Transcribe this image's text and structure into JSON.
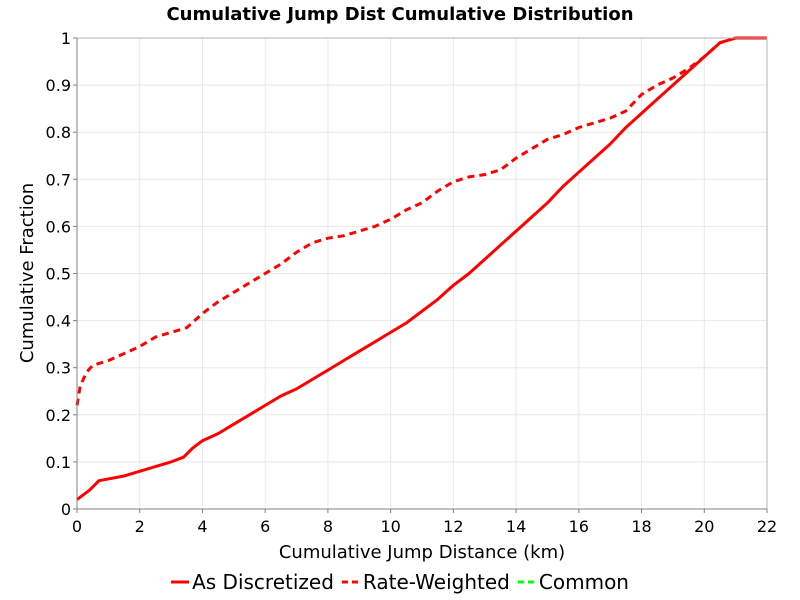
{
  "chart_data": {
    "type": "line",
    "title": "Cumulative Jump Dist Cumulative Distribution",
    "xlabel": "Cumulative Jump Distance (km)",
    "ylabel": "Cumulative Fraction",
    "xlim": [
      0,
      22
    ],
    "ylim": [
      0,
      1
    ],
    "x_ticks": [
      "0",
      "2",
      "4",
      "6",
      "8",
      "10",
      "12",
      "14",
      "16",
      "18",
      "20",
      "22"
    ],
    "y_ticks": [
      "0",
      "0.1",
      "0.2",
      "0.3",
      "0.4",
      "0.5",
      "0.6",
      "0.7",
      "0.8",
      "0.9",
      "1"
    ],
    "grid": true,
    "legend_position": "bottom",
    "series": [
      {
        "name": "As Discretized",
        "color": "#ff0000",
        "style": "solid",
        "x": [
          0,
          0.4,
          0.7,
          1.5,
          2,
          2.5,
          3,
          3.4,
          3.7,
          4,
          4.5,
          5,
          5.5,
          6,
          6.5,
          7,
          7.5,
          8,
          8.5,
          9,
          9.5,
          10,
          10.5,
          11,
          11.5,
          12,
          12.5,
          13,
          13.5,
          14,
          14.5,
          15,
          15.5,
          16,
          16.5,
          17,
          17.5,
          18,
          18.5,
          19,
          19.5,
          20,
          20.5,
          21,
          22
        ],
        "y": [
          0.02,
          0.04,
          0.06,
          0.07,
          0.08,
          0.09,
          0.1,
          0.11,
          0.13,
          0.145,
          0.16,
          0.18,
          0.2,
          0.22,
          0.24,
          0.255,
          0.275,
          0.295,
          0.315,
          0.335,
          0.355,
          0.375,
          0.395,
          0.42,
          0.445,
          0.475,
          0.5,
          0.53,
          0.56,
          0.59,
          0.62,
          0.65,
          0.685,
          0.715,
          0.745,
          0.775,
          0.81,
          0.84,
          0.87,
          0.9,
          0.93,
          0.96,
          0.99,
          1,
          1
        ]
      },
      {
        "name": "Rate-Weighted",
        "color": "#ff0000",
        "style": "dashed",
        "x": [
          0,
          0.1,
          0.3,
          0.5,
          1,
          1.5,
          2,
          2.5,
          3,
          3.5,
          4,
          4.5,
          5,
          5.5,
          6,
          6.5,
          7,
          7.5,
          8,
          8.5,
          9,
          9.5,
          10,
          10.5,
          11,
          11.5,
          12,
          12.5,
          13,
          13.5,
          14,
          14.5,
          15,
          15.5,
          16,
          16.5,
          17,
          17.5,
          18,
          18.5,
          19,
          19.5,
          20,
          20.5,
          21,
          22
        ],
        "y": [
          0.22,
          0.26,
          0.29,
          0.305,
          0.315,
          0.33,
          0.345,
          0.365,
          0.375,
          0.385,
          0.415,
          0.44,
          0.46,
          0.48,
          0.5,
          0.52,
          0.545,
          0.565,
          0.575,
          0.58,
          0.59,
          0.6,
          0.615,
          0.635,
          0.65,
          0.675,
          0.695,
          0.705,
          0.71,
          0.72,
          0.745,
          0.765,
          0.785,
          0.795,
          0.81,
          0.82,
          0.83,
          0.845,
          0.88,
          0.9,
          0.915,
          0.935,
          0.96,
          0.99,
          1,
          1
        ]
      },
      {
        "name": "Common",
        "color": "#00ff00",
        "style": "dashed",
        "x": [],
        "y": []
      }
    ]
  }
}
